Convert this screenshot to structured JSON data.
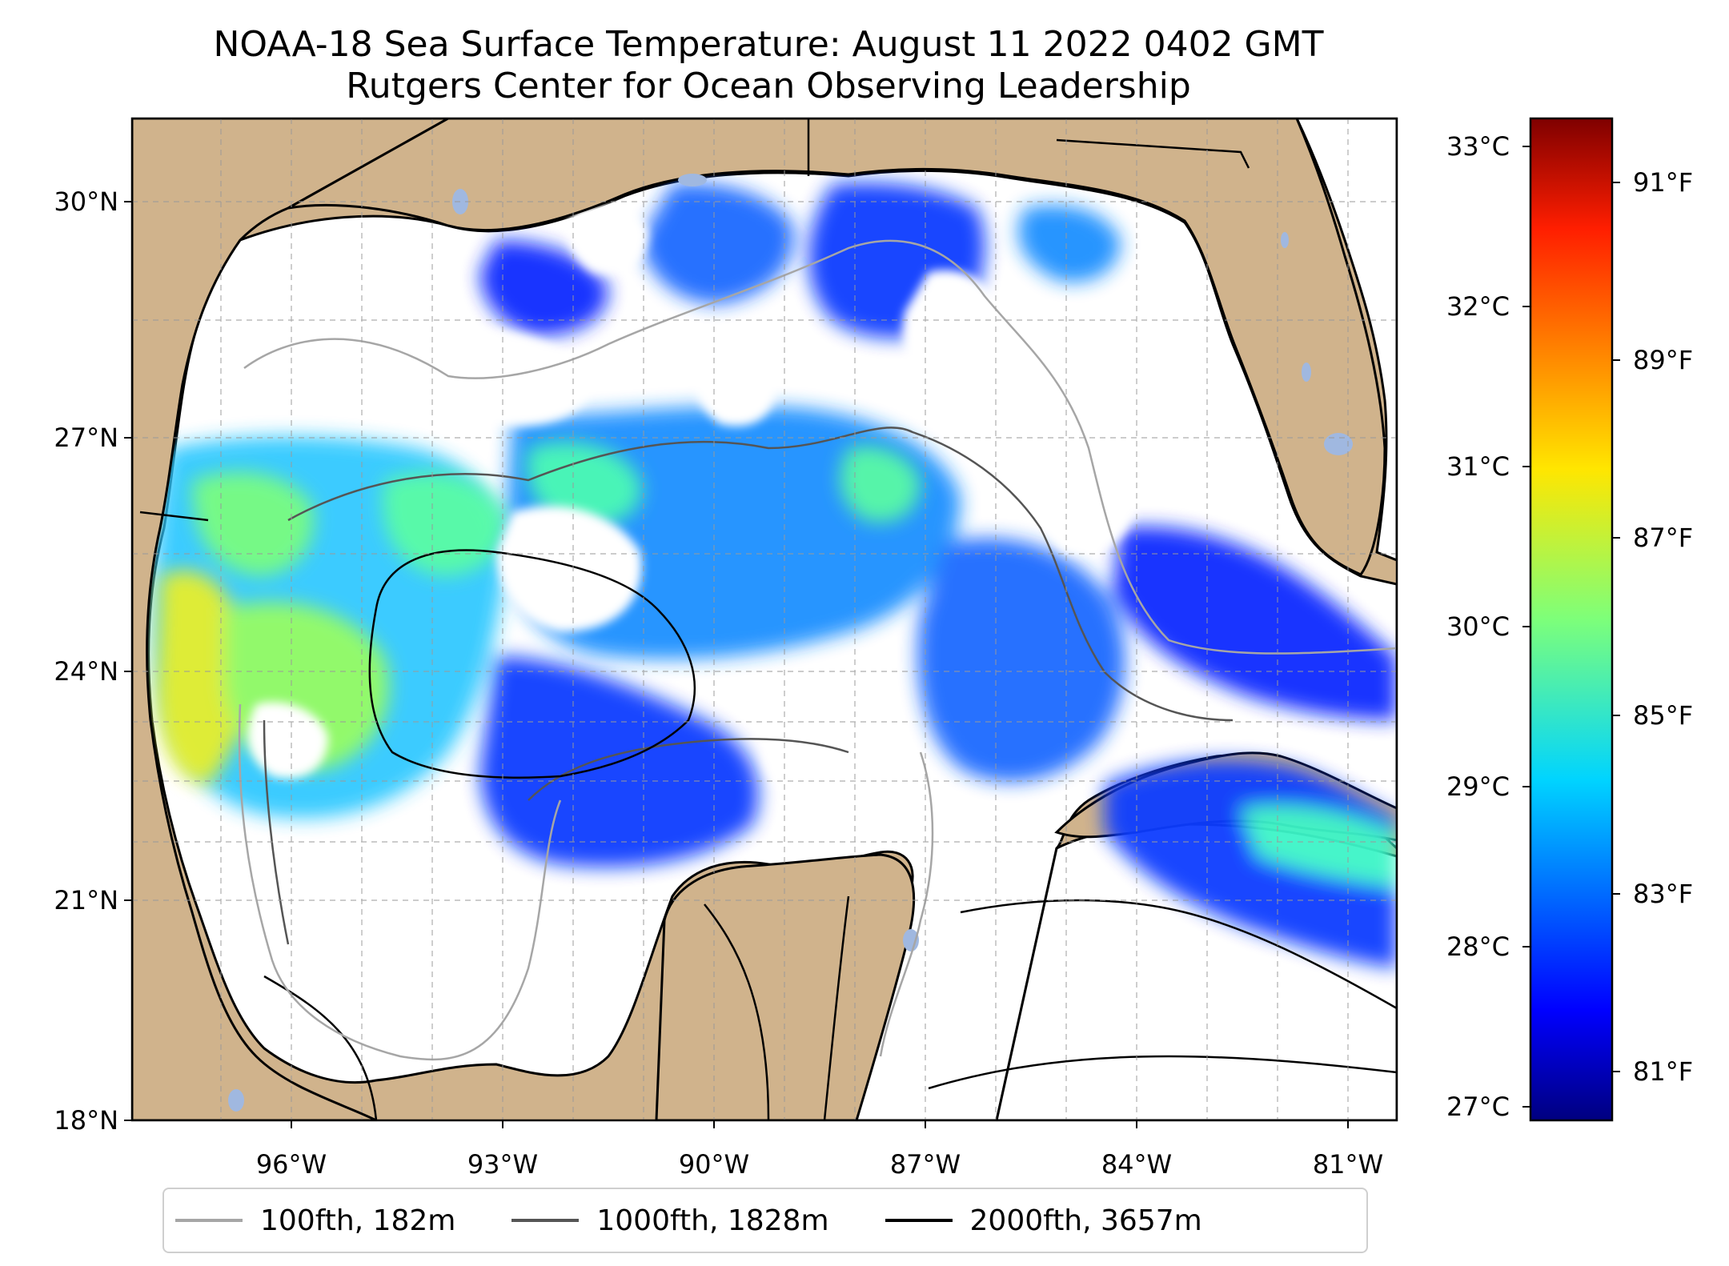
{
  "title": {
    "line1": "NOAA-18 Sea Surface Temperature: August 11 2022 0402 GMT",
    "line2": "Rutgers Center for Ocean Observing Leadership"
  },
  "map": {
    "lon_range": [
      -98.3,
      -80.6
    ],
    "lat_range": [
      18.0,
      30.9
    ],
    "lat_ticks": [
      "18°N",
      "21°N",
      "24°N",
      "27°N",
      "30°N"
    ],
    "lon_ticks": [
      "96°W",
      "93°W",
      "90°W",
      "87°W",
      "84°W",
      "81°W"
    ],
    "land_color": "#d0b38c",
    "cloud_color": "#ffffff",
    "inland_water_color": "#a0b8e0"
  },
  "colorbar": {
    "colormap": "jet",
    "celsius_ticks": [
      "27°C",
      "28°C",
      "29°C",
      "30°C",
      "31°C",
      "32°C",
      "33°C"
    ],
    "fahrenheit_ticks": [
      "81°F",
      "83°F",
      "85°F",
      "87°F",
      "89°F",
      "91°F"
    ],
    "range_c": [
      26.9,
      33.2
    ]
  },
  "legend": [
    {
      "label": "100fth, 182m",
      "color": "#a6a6a6"
    },
    {
      "label": "1000fth, 1828m",
      "color": "#555555"
    },
    {
      "label": "2000fth, 3657m",
      "color": "#000000"
    }
  ]
}
